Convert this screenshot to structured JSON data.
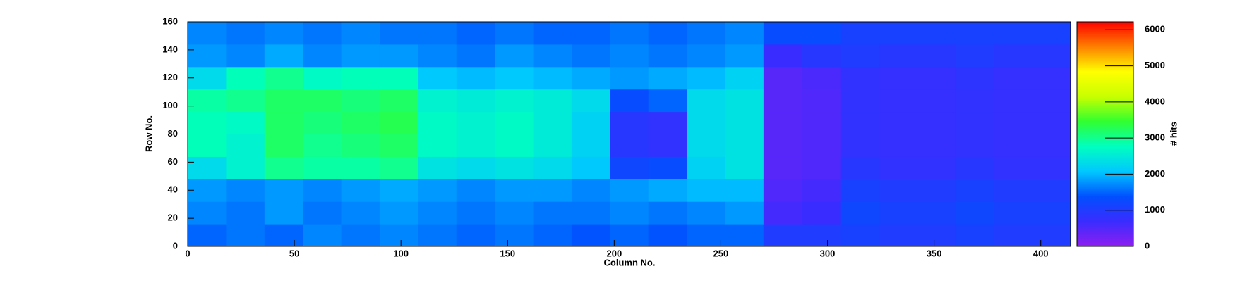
{
  "chart_data": {
    "type": "heatmap",
    "xlabel": "Column No.",
    "ylabel": "Row No.",
    "zlabel": "# hits",
    "xlim": [
      0,
      414
    ],
    "ylim": [
      0,
      160
    ],
    "zlim": [
      0,
      6220
    ],
    "xticks": [
      0,
      50,
      100,
      150,
      200,
      250,
      300,
      350,
      400
    ],
    "yticks": [
      0,
      20,
      40,
      60,
      80,
      100,
      120,
      140,
      160
    ],
    "zticks": [
      0,
      1000,
      2000,
      3000,
      4000,
      5000,
      6000
    ],
    "xbins": [
      0,
      18,
      36,
      54,
      72,
      90,
      108,
      126,
      144,
      162,
      180,
      198,
      216,
      234,
      252,
      270,
      288,
      306,
      324,
      342,
      360,
      378,
      396,
      414
    ],
    "ybins": [
      0,
      16,
      32,
      48,
      64,
      80,
      96,
      112,
      128,
      144,
      160
    ],
    "colorscale": [
      "#8e1ef0",
      "#3a2cff",
      "#0050ff",
      "#00c8ff",
      "#00ffc0",
      "#30ff30",
      "#c8ff00",
      "#ffff00",
      "#ff8000",
      "#ff0000"
    ],
    "values": [
      [
        1500,
        1600,
        1500,
        1700,
        1600,
        1700,
        1600,
        1500,
        1600,
        1500,
        1400,
        1500,
        1400,
        1500,
        1500,
        1000,
        1000,
        1100,
        1000,
        1000,
        1100,
        1000,
        1000
      ],
      [
        1700,
        1600,
        1800,
        1600,
        1700,
        1800,
        1700,
        1600,
        1700,
        1600,
        1600,
        1700,
        1600,
        1700,
        1800,
        600,
        700,
        1200,
        1100,
        1100,
        1200,
        1100,
        1100
      ],
      [
        1800,
        1700,
        1800,
        1700,
        1800,
        1900,
        1800,
        1700,
        1800,
        1800,
        1700,
        1800,
        1900,
        2000,
        2000,
        500,
        600,
        1100,
        1000,
        1000,
        1100,
        1000,
        1000
      ],
      [
        2300,
        2600,
        3000,
        2900,
        2900,
        3000,
        2400,
        2300,
        2400,
        2300,
        2100,
        1200,
        1300,
        2200,
        2400,
        450,
        500,
        900,
        800,
        800,
        900,
        800,
        800
      ],
      [
        2800,
        2600,
        3200,
        3000,
        3100,
        3200,
        2700,
        2600,
        2700,
        2500,
        2200,
        900,
        800,
        2300,
        2400,
        450,
        500,
        800,
        750,
        750,
        800,
        750,
        750
      ],
      [
        2800,
        2700,
        3200,
        3100,
        3200,
        3300,
        2700,
        2600,
        2700,
        2500,
        2200,
        900,
        800,
        2300,
        2400,
        450,
        500,
        800,
        750,
        750,
        800,
        750,
        750
      ],
      [
        2900,
        3000,
        3200,
        3200,
        3100,
        3200,
        2600,
        2500,
        2600,
        2500,
        2300,
        1300,
        1500,
        2300,
        2400,
        450,
        500,
        800,
        750,
        750,
        800,
        750,
        750
      ],
      [
        2300,
        2800,
        3000,
        2700,
        2800,
        2800,
        2100,
        2000,
        2100,
        2000,
        1900,
        1800,
        1900,
        2000,
        2200,
        450,
        550,
        800,
        750,
        750,
        850,
        750,
        750
      ],
      [
        1800,
        1700,
        1900,
        1700,
        1800,
        1800,
        1700,
        1600,
        1800,
        1700,
        1600,
        1700,
        1600,
        1700,
        1800,
        700,
        900,
        1000,
        900,
        900,
        1000,
        900,
        900
      ],
      [
        1700,
        1600,
        1700,
        1600,
        1700,
        1600,
        1600,
        1500,
        1600,
        1500,
        1500,
        1600,
        1500,
        1600,
        1700,
        1300,
        1300,
        1100,
        1100,
        1100,
        1100,
        1100,
        1100
      ]
    ]
  }
}
